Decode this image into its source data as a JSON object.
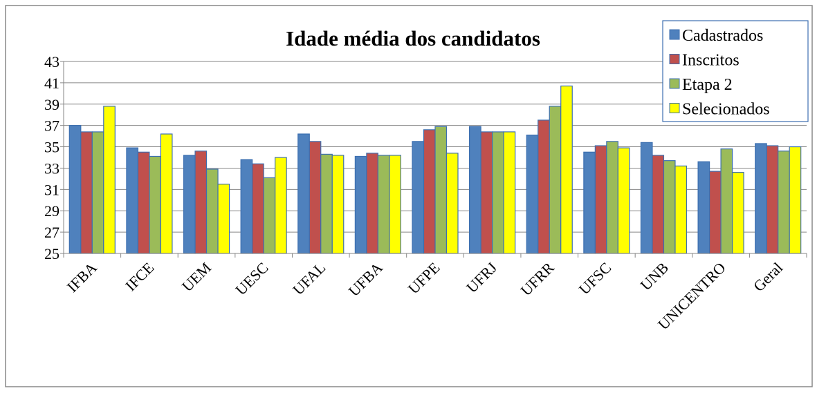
{
  "chart_data": {
    "type": "bar",
    "title": "Idade média dos candidatos",
    "categories": [
      "IFBA",
      "IFCE",
      "UEM",
      "UESC",
      "UFAL",
      "UFBA",
      "UFPE",
      "UFRJ",
      "UFRR",
      "UFSC",
      "UNB",
      "UNICENTRO",
      "Geral"
    ],
    "series": [
      {
        "name": "Cadastrados",
        "color": "#4f81bd",
        "values": [
          37.0,
          34.9,
          34.2,
          33.8,
          36.2,
          34.1,
          35.5,
          36.9,
          36.1,
          34.5,
          35.4,
          33.6,
          35.3
        ]
      },
      {
        "name": "Inscritos",
        "color": "#c0504d",
        "values": [
          36.4,
          34.5,
          34.6,
          33.4,
          35.5,
          34.4,
          36.6,
          36.4,
          37.5,
          35.1,
          34.2,
          32.7,
          35.1
        ]
      },
      {
        "name": "Etapa 2",
        "color": "#9bbb59",
        "values": [
          36.4,
          34.1,
          32.9,
          32.1,
          34.3,
          34.2,
          36.9,
          36.4,
          38.8,
          35.5,
          33.7,
          34.8,
          34.6
        ]
      },
      {
        "name": "Selecionados",
        "color": "#ffff00",
        "values": [
          38.8,
          36.2,
          31.5,
          34.0,
          34.2,
          34.2,
          34.4,
          36.4,
          40.7,
          34.9,
          33.2,
          32.6,
          35.0
        ]
      }
    ],
    "ylim": [
      25,
      43
    ],
    "yticks": [
      25,
      27,
      29,
      31,
      33,
      35,
      37,
      39,
      41,
      43
    ],
    "grid": true,
    "legend": "top-right"
  }
}
